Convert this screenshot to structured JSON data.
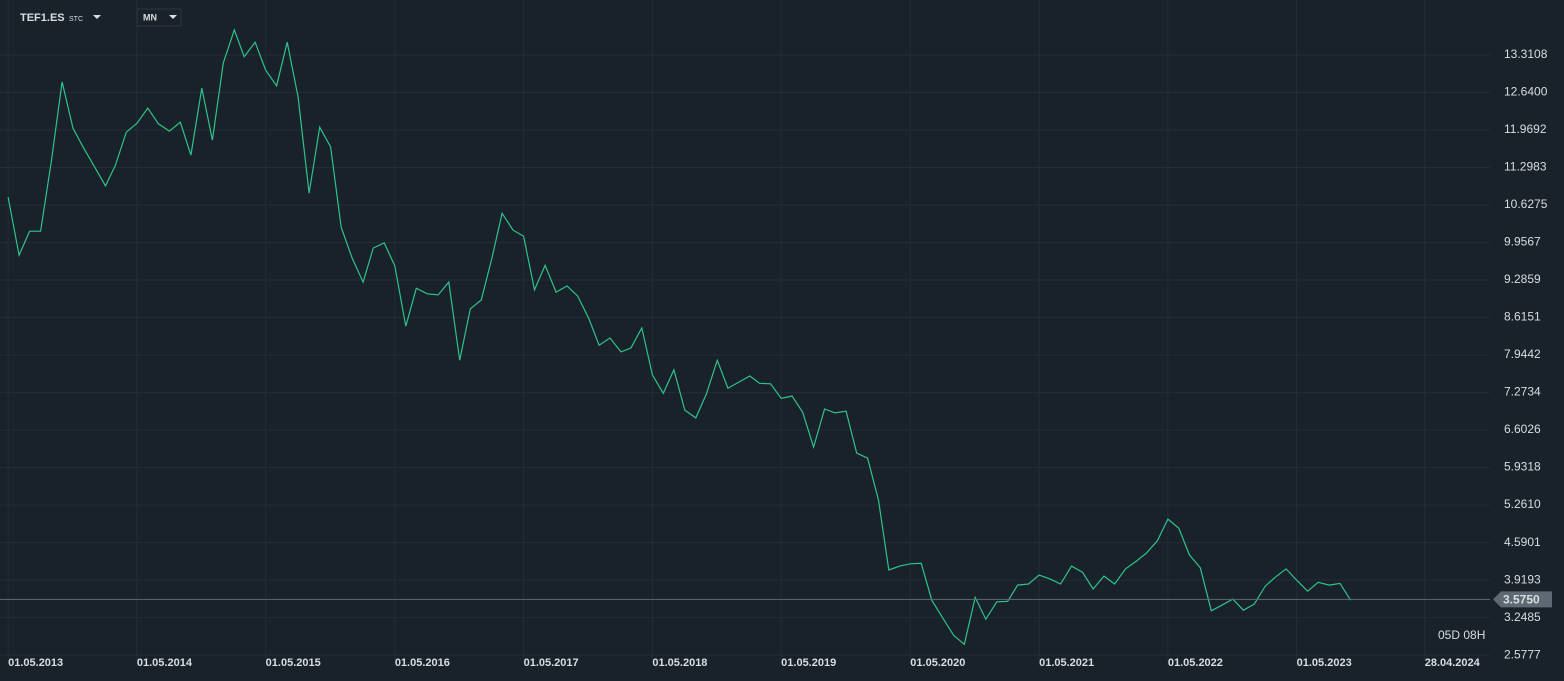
{
  "header": {
    "symbol": "TEF1.ES",
    "exchange": "STC",
    "interval": "MN"
  },
  "countdown": "05D 08H",
  "chart_data": {
    "type": "line",
    "x": [
      "01.05.2013",
      "01.06.2013",
      "01.07.2013",
      "01.08.2013",
      "01.09.2013",
      "01.10.2013",
      "01.11.2013",
      "01.12.2013",
      "01.01.2014",
      "01.02.2014",
      "01.03.2014",
      "01.04.2014",
      "01.05.2014",
      "01.06.2014",
      "01.07.2014",
      "01.08.2014",
      "01.09.2014",
      "01.10.2014",
      "01.11.2014",
      "01.12.2014",
      "01.01.2015",
      "01.02.2015",
      "01.03.2015",
      "01.04.2015",
      "01.05.2015",
      "01.06.2015",
      "01.07.2015",
      "01.08.2015",
      "01.09.2015",
      "01.10.2015",
      "01.11.2015",
      "01.12.2015",
      "01.01.2016",
      "01.02.2016",
      "01.03.2016",
      "01.04.2016",
      "01.05.2016",
      "01.06.2016",
      "01.07.2016",
      "01.08.2016",
      "01.09.2016",
      "01.10.2016",
      "01.11.2016",
      "01.12.2016",
      "01.01.2017",
      "01.02.2017",
      "01.03.2017",
      "01.04.2017",
      "01.05.2017",
      "01.06.2017",
      "01.07.2017",
      "01.08.2017",
      "01.09.2017",
      "01.10.2017",
      "01.11.2017",
      "01.12.2017",
      "01.01.2018",
      "01.02.2018",
      "01.03.2018",
      "01.04.2018",
      "01.05.2018",
      "01.06.2018",
      "01.07.2018",
      "01.08.2018",
      "01.09.2018",
      "01.10.2018",
      "01.11.2018",
      "01.12.2018",
      "01.01.2019",
      "01.02.2019",
      "01.03.2019",
      "01.04.2019",
      "01.05.2019",
      "01.06.2019",
      "01.07.2019",
      "01.08.2019",
      "01.09.2019",
      "01.10.2019",
      "01.11.2019",
      "01.12.2019",
      "01.01.2020",
      "01.02.2020",
      "01.03.2020",
      "01.04.2020",
      "01.05.2020",
      "01.06.2020",
      "01.07.2020",
      "01.08.2020",
      "01.09.2020",
      "01.10.2020",
      "01.11.2020",
      "01.12.2020",
      "01.01.2021",
      "01.02.2021",
      "01.03.2021",
      "01.04.2021",
      "01.05.2021",
      "01.06.2021",
      "01.07.2021",
      "01.08.2021",
      "01.09.2021",
      "01.10.2021",
      "01.11.2021",
      "01.12.2021",
      "01.01.2022",
      "01.02.2022",
      "01.03.2022",
      "01.04.2022",
      "01.05.2022",
      "01.06.2022",
      "01.07.2022",
      "01.08.2022",
      "01.09.2022",
      "01.10.2022",
      "01.11.2022",
      "01.12.2022",
      "01.01.2023",
      "01.02.2023",
      "01.03.2023",
      "01.04.2023",
      "01.05.2023",
      "01.06.2023",
      "01.07.2023",
      "01.08.2023",
      "01.09.2023",
      "01.10.2023"
    ],
    "series": [
      {
        "name": "TEF1.ES",
        "color": "#2fc28a",
        "values": [
          10.77,
          9.73,
          10.16,
          10.16,
          11.43,
          12.83,
          12.0,
          11.65,
          11.31,
          10.97,
          11.34,
          11.93,
          12.09,
          12.36,
          12.08,
          11.95,
          12.11,
          11.52,
          12.72,
          11.79,
          13.17,
          13.76,
          13.28,
          13.54,
          13.04,
          12.76,
          13.54,
          12.56,
          10.84,
          12.02,
          11.67,
          10.23,
          9.68,
          9.25,
          9.86,
          9.95,
          9.54,
          8.46,
          9.14,
          9.04,
          9.02,
          9.25,
          7.85,
          8.77,
          8.93,
          9.7,
          10.48,
          10.18,
          10.07,
          9.11,
          9.55,
          9.07,
          9.18,
          9.0,
          8.61,
          8.12,
          8.25,
          8.0,
          8.07,
          8.43,
          7.59,
          7.26,
          7.68,
          6.96,
          6.82,
          7.25,
          7.85,
          7.35,
          7.46,
          7.57,
          7.44,
          7.43,
          7.17,
          7.21,
          6.92,
          6.3,
          6.98,
          6.91,
          6.94,
          6.19,
          6.1,
          5.35,
          4.1,
          4.17,
          4.21,
          4.22,
          3.56,
          3.24,
          2.93,
          2.77,
          3.61,
          3.22,
          3.53,
          3.54,
          3.83,
          3.85,
          4.01,
          3.94,
          3.85,
          4.17,
          4.06,
          3.76,
          3.99,
          3.85,
          4.12,
          4.26,
          4.4,
          4.62,
          5.01,
          4.85,
          4.37,
          4.14,
          3.37,
          3.47,
          3.58,
          3.38,
          3.49,
          3.81,
          3.97,
          4.12,
          3.92,
          3.72,
          3.88,
          3.83,
          3.86,
          3.56
        ]
      }
    ],
    "xlim": [
      "08.04.2013",
      "30.10.2024"
    ],
    "xticks": [
      "01.05.2013",
      "01.05.2014",
      "01.05.2015",
      "01.05.2016",
      "01.05.2017",
      "01.05.2018",
      "01.05.2019",
      "01.05.2020",
      "01.05.2021",
      "01.05.2022",
      "01.05.2023",
      "28.04.2024"
    ],
    "ylim": [
      2.49,
      14.295
    ],
    "yticks": [
      13.3108,
      {
        "value": 12.64,
        "label": "12.6400"
      },
      11.9692,
      11.2983,
      10.6275,
      9.9567,
      9.2859,
      8.6151,
      7.9442,
      7.2734,
      6.6026,
      5.9318,
      {
        "value": 5.261,
        "label": "5.2610"
      },
      4.5901,
      3.9193,
      3.2485,
      2.5777
    ],
    "grid": true,
    "current_price": {
      "value": 3.575,
      "label": "3.5750"
    }
  }
}
